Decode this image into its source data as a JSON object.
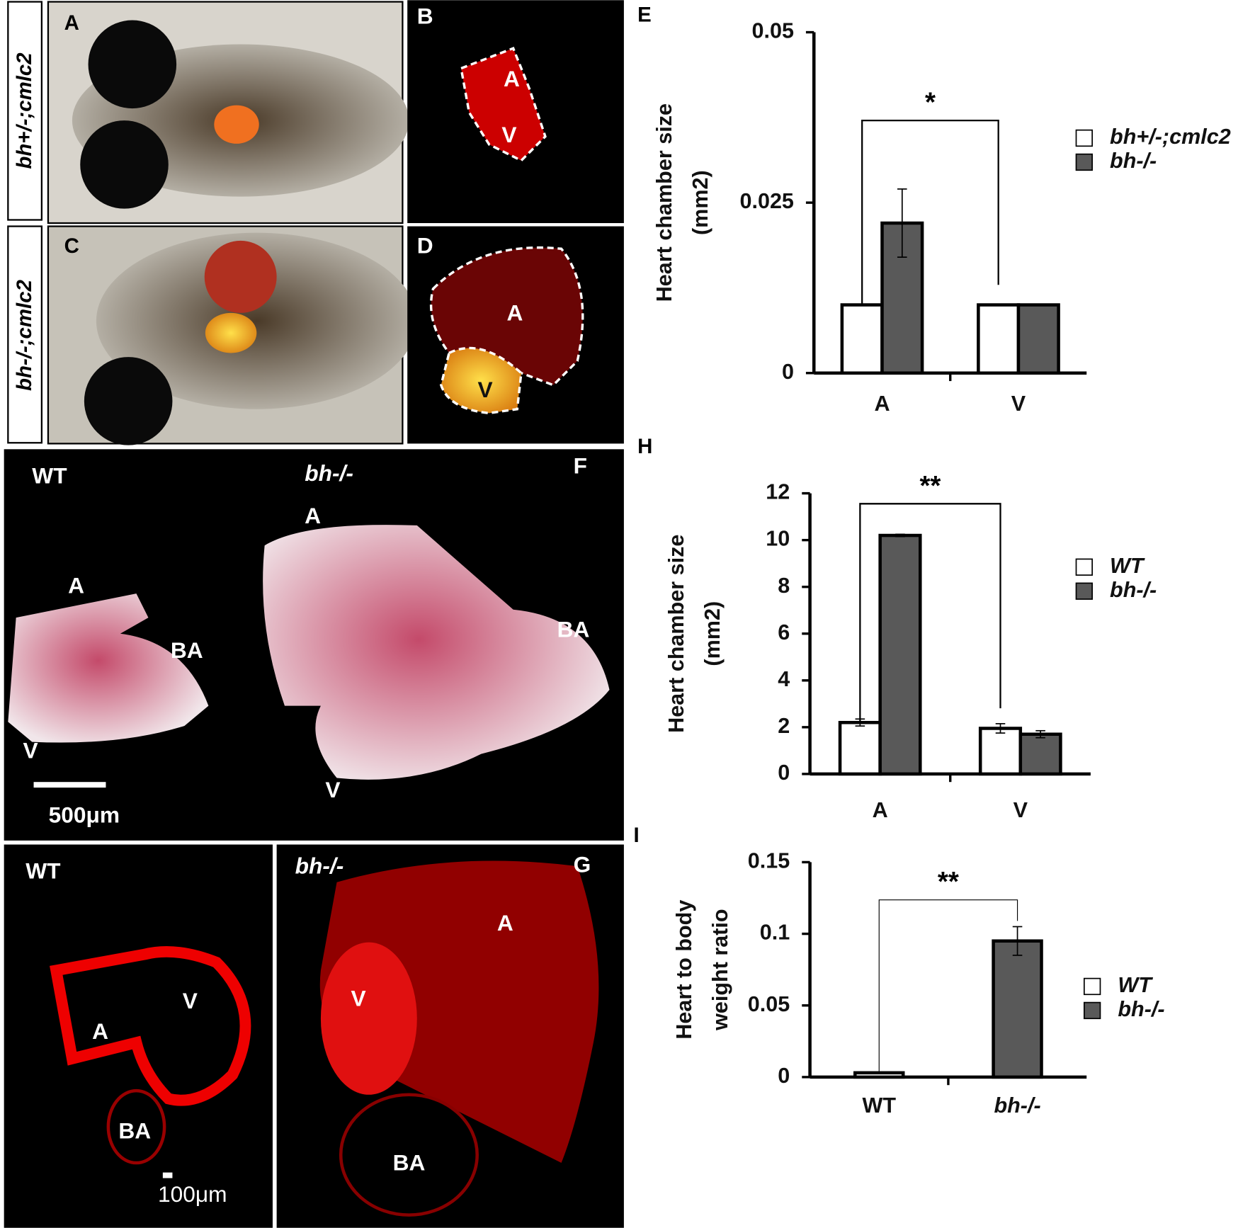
{
  "panels": {
    "A": {
      "label": "A",
      "genotype": "bh+/-;cmlc2"
    },
    "B": {
      "label": "B",
      "chamber_a": "A",
      "chamber_v": "V"
    },
    "C": {
      "label": "C",
      "genotype": "bh-/-;cmlc2"
    },
    "D": {
      "label": "D",
      "chamber_a": "A",
      "chamber_v": "V"
    },
    "F": {
      "label": "F",
      "left": "WT",
      "right": "bh-/-",
      "left_a": "A",
      "left_ba": "BA",
      "left_v": "V",
      "right_a": "A",
      "right_ba": "BA",
      "right_v": "V",
      "scale": "500μm"
    },
    "G": {
      "label": "G",
      "left": "WT",
      "right": "bh-/-",
      "left_a": "A",
      "left_v": "V",
      "left_ba": "BA",
      "right_a": "A",
      "right_v": "V",
      "right_ba": "BA",
      "scale": "100μm"
    }
  },
  "chart_data": [
    {
      "type": "bar",
      "panel": "E",
      "ylabel": "Heart chamber size",
      "yunit": "(mm2)",
      "categories": [
        "A",
        "V"
      ],
      "series": [
        {
          "name": "bh+/-;cmlc2",
          "color": "#ffffff",
          "values": [
            0.01,
            0.01
          ]
        },
        {
          "name": "bh-/-",
          "color": "#595959",
          "values": [
            0.022,
            0.01
          ],
          "errors": [
            0.005,
            null
          ]
        }
      ],
      "ylim": [
        0,
        0.05
      ],
      "yticks": [
        0,
        0.025,
        0.05
      ],
      "annotation": "*"
    },
    {
      "type": "bar",
      "panel": "H",
      "ylabel": "Heart chamber size",
      "yunit": "(mm2)",
      "categories": [
        "A",
        "V"
      ],
      "series": [
        {
          "name": "WT",
          "color": "#ffffff",
          "values": [
            2.2,
            1.95
          ],
          "errors": [
            0.15,
            0.2
          ]
        },
        {
          "name": "bh-/-",
          "color": "#595959",
          "values": [
            10.2,
            1.7
          ],
          "errors": [
            0.05,
            0.15
          ]
        }
      ],
      "ylim": [
        0,
        12
      ],
      "yticks": [
        0,
        2,
        4,
        6,
        8,
        10,
        12
      ],
      "annotation": "**"
    },
    {
      "type": "bar",
      "panel": "I",
      "ylabel": "Heart to body",
      "yunit": "weight ratio",
      "categories": [
        "WT",
        "bh-/-"
      ],
      "series": [
        {
          "name": "WT",
          "color": "#ffffff",
          "values": [
            0.003,
            null
          ]
        },
        {
          "name": "bh-/-",
          "color": "#595959",
          "values": [
            null,
            0.095
          ],
          "errors": [
            null,
            0.01
          ]
        }
      ],
      "ylim": [
        0,
        0.15
      ],
      "yticks": [
        0,
        0.05,
        0.1,
        0.15
      ],
      "annotation": "**"
    }
  ]
}
